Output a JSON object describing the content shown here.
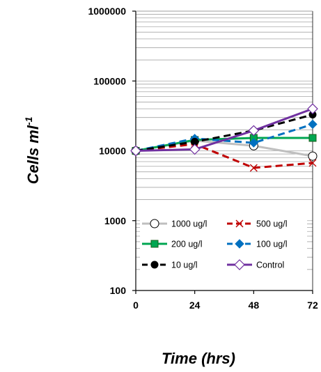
{
  "chart_data": {
    "type": "line",
    "xlabel": "Time (hrs)",
    "ylabel": "Cells ml",
    "ylabel_superscript": "-1",
    "x": [
      0,
      24,
      48,
      72
    ],
    "xlim": [
      0,
      72
    ],
    "ylim": [
      100,
      1000000
    ],
    "yscale": "log",
    "x_tick_labels": [
      "0",
      "24",
      "48",
      "72"
    ],
    "y_tick_labels": [
      "100",
      "1000",
      "10000",
      "100000",
      "1000000"
    ],
    "y_ticks": [
      100,
      1000,
      10000,
      100000,
      1000000
    ],
    "grid": true,
    "legend_position": "bottom-inside",
    "series": [
      {
        "name": "1000 ug/l",
        "values": [
          10000,
          14000,
          11800,
          8400
        ],
        "color": "#bfbfbf",
        "marker": "circle-open",
        "dash": "solid"
      },
      {
        "name": "500 ug/l",
        "values": [
          10000,
          12500,
          5700,
          6700
        ],
        "color": "#c00000",
        "marker": "x",
        "dash": "dashed"
      },
      {
        "name": "200 ug/l",
        "values": [
          10000,
          14300,
          15300,
          15300
        ],
        "color": "#00a651",
        "marker": "square-filled",
        "dash": "solid"
      },
      {
        "name": "100 ug/l",
        "values": [
          10000,
          15000,
          13000,
          24000
        ],
        "color": "#0070c0",
        "marker": "diamond-filled",
        "dash": "dashed"
      },
      {
        "name": "10 ug/l",
        "values": [
          10000,
          13500,
          19500,
          33000
        ],
        "color": "#000000",
        "marker": "circle-filled",
        "dash": "dashed"
      },
      {
        "name": "Control",
        "values": [
          10000,
          10500,
          19500,
          40000
        ],
        "color": "#7030a0",
        "marker": "diamond-open",
        "dash": "solid"
      }
    ]
  }
}
